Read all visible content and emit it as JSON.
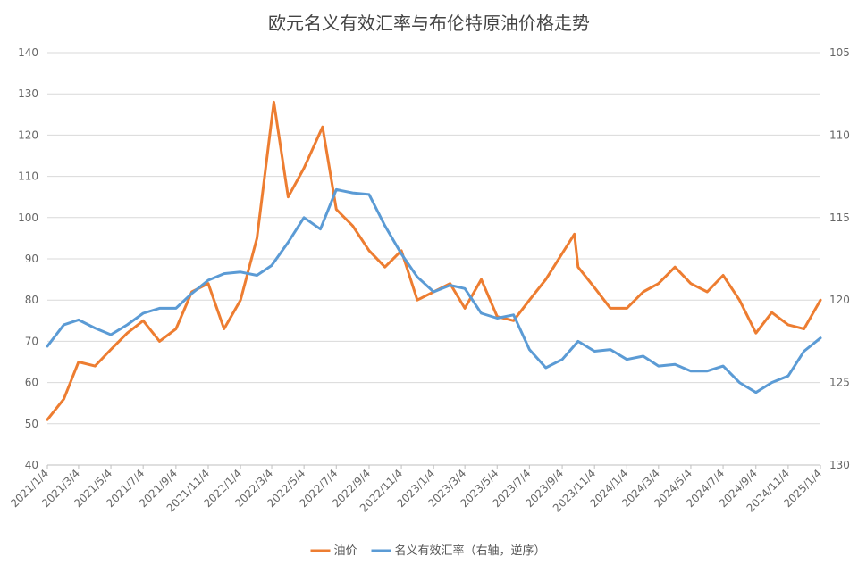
{
  "chart_data": {
    "type": "line",
    "title": "欧元名义有效汇率与布伦特原油价格走势",
    "x_tick_labels": [
      "2021/1/4",
      "2021/3/4",
      "2021/5/4",
      "2021/7/4",
      "2021/9/4",
      "2021/11/4",
      "2022/1/4",
      "2022/3/4",
      "2022/5/4",
      "2022/7/4",
      "2022/9/4",
      "2022/11/4",
      "2023/1/4",
      "2023/3/4",
      "2023/5/4",
      "2023/7/4",
      "2023/9/4",
      "2023/11/4",
      "2024/1/4",
      "2024/3/4",
      "2024/5/4",
      "2024/7/4",
      "2024/9/4",
      "2024/11/4",
      "2025/1/4"
    ],
    "y_left": {
      "min": 40,
      "max": 140,
      "ticks": [
        40,
        50,
        60,
        70,
        80,
        90,
        100,
        110,
        120,
        130,
        140
      ]
    },
    "y_right": {
      "min": 105,
      "max": 130,
      "reversed": true,
      "ticks": [
        105,
        110,
        115,
        120,
        125,
        130
      ]
    },
    "legend_position": "bottom",
    "grid": "horizontal",
    "series": [
      {
        "name": "油价",
        "axis": "left",
        "color": "#ED7D31",
        "x": [
          "2021/1/4",
          "2021/2/4",
          "2021/3/4",
          "2021/4/4",
          "2021/5/4",
          "2021/6/4",
          "2021/7/4",
          "2021/8/4",
          "2021/9/4",
          "2021/10/4",
          "2021/11/4",
          "2021/12/4",
          "2022/1/4",
          "2022/2/4",
          "2022/3/8",
          "2022/4/4",
          "2022/5/4",
          "2022/6/8",
          "2022/7/4",
          "2022/8/4",
          "2022/9/4",
          "2022/10/4",
          "2022/11/4",
          "2022/12/4",
          "2023/1/4",
          "2023/2/4",
          "2023/3/4",
          "2023/4/4",
          "2023/5/4",
          "2023/6/4",
          "2023/7/4",
          "2023/8/4",
          "2023/9/27",
          "2023/10/4",
          "2023/11/4",
          "2023/12/4",
          "2024/1/4",
          "2024/2/4",
          "2024/3/4",
          "2024/4/4",
          "2024/5/4",
          "2024/6/4",
          "2024/7/4",
          "2024/8/4",
          "2024/9/4",
          "2024/10/4",
          "2024/11/4",
          "2024/12/4",
          "2025/1/4"
        ],
        "y": [
          51,
          56,
          65,
          64,
          68,
          72,
          75,
          70,
          73,
          82,
          84,
          73,
          80,
          95,
          128,
          105,
          112,
          122,
          102,
          98,
          92,
          88,
          92,
          80,
          82,
          84,
          78,
          85,
          76,
          75,
          80,
          85,
          96,
          88,
          83,
          78,
          78,
          82,
          84,
          88,
          84,
          82,
          86,
          80,
          72,
          77,
          74,
          73,
          80
        ]
      },
      {
        "name": "名义有效汇率（右轴，逆序）",
        "axis": "right",
        "color": "#5B9BD5",
        "x": [
          "2021/1/4",
          "2021/2/4",
          "2021/3/4",
          "2021/4/4",
          "2021/5/4",
          "2021/6/4",
          "2021/7/4",
          "2021/8/4",
          "2021/9/4",
          "2021/10/4",
          "2021/11/4",
          "2021/12/4",
          "2022/1/4",
          "2022/2/4",
          "2022/3/4",
          "2022/4/4",
          "2022/5/4",
          "2022/6/4",
          "2022/7/4",
          "2022/8/4",
          "2022/9/4",
          "2022/10/4",
          "2022/11/4",
          "2022/12/4",
          "2023/1/4",
          "2023/2/4",
          "2023/3/4",
          "2023/4/4",
          "2023/5/4",
          "2023/6/4",
          "2023/7/4",
          "2023/8/4",
          "2023/9/4",
          "2023/10/4",
          "2023/11/4",
          "2023/12/4",
          "2024/1/4",
          "2024/2/4",
          "2024/3/4",
          "2024/4/4",
          "2024/5/4",
          "2024/6/4",
          "2024/7/4",
          "2024/8/4",
          "2024/9/4",
          "2024/10/4",
          "2024/11/4",
          "2024/12/4",
          "2025/1/4"
        ],
        "y": [
          122.8,
          121.5,
          121.2,
          121.7,
          122.1,
          121.5,
          120.8,
          120.5,
          120.5,
          119.6,
          118.8,
          118.4,
          118.3,
          118.5,
          117.9,
          116.5,
          115.0,
          115.7,
          113.3,
          113.5,
          113.6,
          115.5,
          117.2,
          118.6,
          119.5,
          119.1,
          119.3,
          120.8,
          121.1,
          120.9,
          123.0,
          124.1,
          123.6,
          122.5,
          123.1,
          123.0,
          123.6,
          123.4,
          124.0,
          123.9,
          124.3,
          124.3,
          124.0,
          125.0,
          125.6,
          125.0,
          124.6,
          123.1,
          122.3
        ]
      }
    ]
  }
}
